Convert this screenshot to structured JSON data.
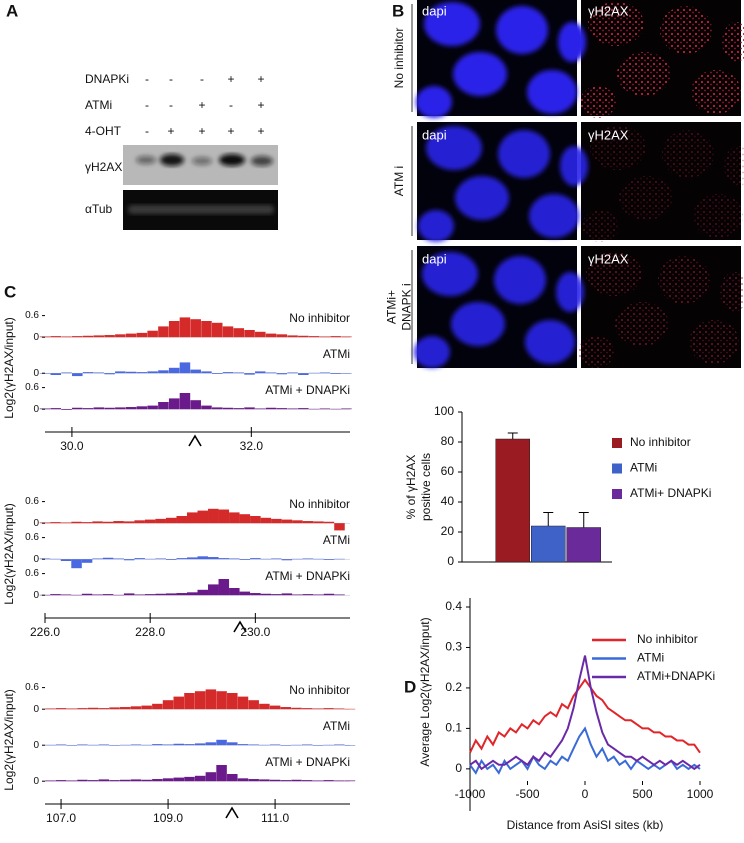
{
  "panel_labels": [
    "A",
    "B",
    "C",
    "D"
  ],
  "panel_a": {
    "rows": [
      {
        "label": "DNAPKi",
        "signs": [
          "-",
          "-",
          "-",
          "+",
          "+"
        ]
      },
      {
        "label": "ATMi",
        "signs": [
          "-",
          "-",
          "+",
          "-",
          "+"
        ]
      },
      {
        "label": "4-OHT",
        "signs": [
          "-",
          "+",
          "+",
          "+",
          "+"
        ]
      }
    ],
    "blots": [
      "γH2AX",
      "αTub"
    ]
  },
  "panel_b": {
    "stains": [
      "dapi",
      "γH2AX"
    ],
    "rows": [
      [
        "No inhibitor"
      ],
      [
        "ATM i"
      ],
      [
        "ATMi+",
        "DNAPK i"
      ]
    ]
  },
  "chart_data": [
    {
      "type": "bar",
      "ylabel": [
        "% of γH2AX",
        "positive cells"
      ],
      "categories": [
        "No inhibitor",
        "ATMi",
        "ATMi+ DNAPKi"
      ],
      "values": [
        82,
        24,
        23
      ],
      "errors": [
        4,
        9,
        10
      ],
      "colors": [
        "#9b1b22",
        "#3f62c8",
        "#6a2a9a"
      ],
      "ylim": [
        0,
        100
      ],
      "yticks": [
        0,
        20,
        40,
        60,
        80,
        100
      ]
    },
    {
      "type": "line",
      "ylabel": "Average Log2(γH2AX/input)",
      "xlabel": "Distance from AsiSI sites (kb)",
      "x": [
        -1000,
        -950,
        -900,
        -850,
        -800,
        -750,
        -700,
        -650,
        -600,
        -550,
        -500,
        -450,
        -400,
        -350,
        -300,
        -250,
        -200,
        -150,
        -100,
        -50,
        0,
        50,
        100,
        150,
        200,
        250,
        300,
        350,
        400,
        450,
        500,
        550,
        600,
        650,
        700,
        750,
        800,
        850,
        900,
        950,
        1000
      ],
      "series": [
        {
          "name": "No inhibitor",
          "color": "#e0262a",
          "values": [
            0.04,
            0.07,
            0.05,
            0.08,
            0.06,
            0.09,
            0.08,
            0.1,
            0.09,
            0.11,
            0.1,
            0.12,
            0.11,
            0.13,
            0.14,
            0.13,
            0.16,
            0.15,
            0.18,
            0.2,
            0.22,
            0.2,
            0.18,
            0.17,
            0.15,
            0.14,
            0.13,
            0.12,
            0.12,
            0.11,
            0.1,
            0.1,
            0.09,
            0.09,
            0.08,
            0.08,
            0.07,
            0.07,
            0.06,
            0.06,
            0.04
          ]
        },
        {
          "name": "ATMi",
          "color": "#3a6ad8",
          "values": [
            0.01,
            -0.01,
            0.02,
            0,
            0.01,
            -0.01,
            0.02,
            0,
            0.01,
            0.02,
            0,
            0.03,
            0.01,
            0,
            0.02,
            0.01,
            0.03,
            0.02,
            0.05,
            0.08,
            0.1,
            0.06,
            0.03,
            0.05,
            0.02,
            0.03,
            0.01,
            0.02,
            0,
            0.02,
            0.01,
            0,
            0.01,
            0,
            0.01,
            0.02,
            0,
            0.01,
            0,
            0.01,
            0
          ]
        },
        {
          "name": "ATMi+DNAPKi",
          "color": "#6a2aa8",
          "values": [
            0.01,
            0.02,
            0,
            0.01,
            0.02,
            0.01,
            0.01,
            0.02,
            0.03,
            0.02,
            0.01,
            0.03,
            0.02,
            0.04,
            0.03,
            0.05,
            0.07,
            0.1,
            0.15,
            0.22,
            0.28,
            0.2,
            0.14,
            0.09,
            0.06,
            0.05,
            0.04,
            0.03,
            0.03,
            0.02,
            0.03,
            0.02,
            0.01,
            0.02,
            0.01,
            0.02,
            0.01,
            0.02,
            0.01,
            0,
            0.01
          ]
        }
      ],
      "xlim": [
        -1000,
        1000
      ],
      "xticks": [
        -1000,
        -500,
        0,
        500,
        1000
      ],
      "ylim": [
        -0.03,
        0.4
      ],
      "yticks": [
        0,
        0.1,
        0.2,
        0.3,
        0.4
      ]
    },
    {
      "type": "area",
      "ylabel": "Log2(γH2AX/input)",
      "x": [
        29.7,
        29.82,
        29.94,
        30.06,
        30.18,
        30.3,
        30.42,
        30.54,
        30.66,
        30.78,
        30.9,
        31.02,
        31.14,
        31.26,
        31.38,
        31.5,
        31.62,
        31.74,
        31.86,
        31.98,
        32.1,
        32.22,
        32.34,
        32.46,
        32.58,
        32.7,
        32.82,
        32.94,
        33.06
      ],
      "series": [
        {
          "name": "No inhibitor",
          "color": "#d42a2a",
          "yticks": [
            0,
            0.6
          ],
          "values": [
            0.02,
            0.03,
            0.02,
            0.03,
            0.04,
            0.05,
            0.06,
            0.08,
            0.1,
            0.12,
            0.18,
            0.3,
            0.45,
            0.55,
            0.5,
            0.45,
            0.4,
            0.3,
            0.25,
            0.2,
            0.15,
            0.1,
            0.08,
            0.05,
            0.04,
            0.03,
            0.02,
            0.03,
            0.02
          ]
        },
        {
          "name": "ATMi",
          "color": "#4a68e0",
          "yticks": [
            0
          ],
          "values": [
            0,
            -0.05,
            0.02,
            -0.08,
            0.03,
            0.02,
            -0.03,
            0.05,
            0.04,
            0.03,
            0.05,
            0.08,
            0.15,
            0.3,
            0.1,
            0.05,
            -0.02,
            0.03,
            0.02,
            -0.04,
            0.05,
            0.02,
            -0.03,
            0.02,
            -0.05,
            0.01,
            0.02,
            -0.02,
            0
          ]
        },
        {
          "name": "ATMi + DNAPKi",
          "color": "#6a1a8a",
          "yticks": [
            0,
            0.6
          ],
          "values": [
            0.02,
            0.03,
            -0.02,
            0.04,
            0.03,
            0.05,
            0.04,
            0.05,
            0.06,
            0.08,
            0.1,
            0.2,
            0.3,
            0.45,
            0.25,
            0.1,
            0.05,
            0.04,
            0.03,
            0.05,
            0.02,
            0.04,
            0.03,
            0.02,
            0.03,
            0.01,
            0.02,
            0.01,
            0.02
          ]
        }
      ],
      "xlim": [
        29.7,
        33.1
      ],
      "xticks": [
        {
          "value": 30,
          "label": "30.0"
        },
        {
          "value": 32,
          "label": "32.0"
        }
      ],
      "ylim": [
        -0.3,
        0.7
      ]
    },
    {
      "type": "area",
      "ylabel": "Log2(γH2AX/input)",
      "x": [
        226.0,
        226.2,
        226.4,
        226.6,
        226.8,
        227.0,
        227.2,
        227.4,
        227.6,
        227.8,
        228.0,
        228.2,
        228.4,
        228.6,
        228.8,
        229.0,
        229.2,
        229.4,
        229.6,
        229.8,
        230.0,
        230.2,
        230.4,
        230.6,
        230.8,
        231.0,
        231.2,
        231.4,
        231.6
      ],
      "series": [
        {
          "name": "No inhibitor",
          "color": "#d42a2a",
          "yticks": [
            0,
            0.6
          ],
          "values": [
            0.02,
            0.03,
            0.02,
            0.04,
            0.03,
            0.05,
            0.04,
            0.06,
            0.05,
            0.08,
            0.1,
            0.12,
            0.15,
            0.2,
            0.3,
            0.35,
            0.4,
            0.38,
            0.3,
            0.25,
            0.2,
            0.15,
            0.12,
            0.1,
            0.08,
            0.06,
            0.05,
            0.04,
            -0.2
          ]
        },
        {
          "name": "ATMi",
          "color": "#4a68e0",
          "yticks": [
            0,
            0.6
          ],
          "values": [
            0.02,
            0.01,
            -0.05,
            -0.25,
            -0.1,
            0.02,
            0.04,
            0.02,
            -0.03,
            0.03,
            0.01,
            0.02,
            -0.02,
            0.03,
            0.05,
            0.08,
            0.06,
            0.03,
            0.02,
            -0.02,
            0.03,
            0.01,
            0.02,
            -0.03,
            0.01,
            0.02,
            0.01,
            -0.02,
            0.01
          ]
        },
        {
          "name": "ATMi + DNAPKi",
          "color": "#6a1a8a",
          "yticks": [
            0,
            0.6
          ],
          "values": [
            0.01,
            0.03,
            0.02,
            0.01,
            0.04,
            0.02,
            0.03,
            0.01,
            0.05,
            0.02,
            0.03,
            0.04,
            0.05,
            0.06,
            0.08,
            0.15,
            0.3,
            0.45,
            0.2,
            0.1,
            0.06,
            0.04,
            0.03,
            0.05,
            0.02,
            0.03,
            0.02,
            0.04,
            0.02
          ]
        }
      ],
      "xlim": [
        226,
        231.8
      ],
      "xticks": [
        {
          "value": 226,
          "label": "226.0"
        },
        {
          "value": 228,
          "label": "228.0"
        },
        {
          "value": 230,
          "label": "230.0"
        }
      ],
      "ylim": [
        -0.3,
        0.7
      ]
    },
    {
      "type": "area",
      "ylabel": "Log2(γH2AX/input)",
      "x": [
        106.8,
        107.0,
        107.2,
        107.4,
        107.6,
        107.8,
        108.0,
        108.2,
        108.4,
        108.6,
        108.8,
        109.0,
        109.2,
        109.4,
        109.6,
        109.8,
        110.0,
        110.2,
        110.4,
        110.6,
        110.8,
        111.0,
        111.2,
        111.4,
        111.6,
        111.8,
        112.0,
        112.2,
        112.4
      ],
      "series": [
        {
          "name": "No inhibitor",
          "color": "#d42a2a",
          "yticks": [
            0,
            0.6
          ],
          "values": [
            0.02,
            0.03,
            0.02,
            0.03,
            0.04,
            0.03,
            0.05,
            0.06,
            0.08,
            0.1,
            0.15,
            0.25,
            0.35,
            0.45,
            0.5,
            0.55,
            0.5,
            0.45,
            0.35,
            0.25,
            0.15,
            0.1,
            0.06,
            0.04,
            0.03,
            0.02,
            0.03,
            0.02,
            0.01
          ]
        },
        {
          "name": "ATMi",
          "color": "#4a68e0",
          "yticks": [
            0
          ],
          "values": [
            0.01,
            0.02,
            0,
            0.02,
            0.01,
            0.02,
            0,
            0.01,
            0.02,
            0.01,
            0.03,
            0.02,
            0.04,
            0.03,
            0.05,
            0.08,
            0.15,
            0.08,
            0.03,
            0.02,
            0.01,
            0.02,
            0,
            0.01,
            0.02,
            0,
            0.01,
            0.02,
            0
          ]
        },
        {
          "name": "ATMi + DNAPKi",
          "color": "#6a1a8a",
          "yticks": [
            0
          ],
          "values": [
            0.02,
            0.03,
            0.02,
            0.04,
            0.03,
            0.05,
            0.03,
            0.04,
            0.05,
            0.04,
            0.06,
            0.08,
            0.1,
            0.12,
            0.15,
            0.25,
            0.45,
            0.2,
            0.08,
            0.06,
            0.05,
            0.04,
            0.03,
            0.04,
            0.03,
            0.02,
            0.03,
            0.02,
            0.02
          ]
        }
      ],
      "xlim": [
        106.7,
        112.4
      ],
      "xticks": [
        {
          "value": 107,
          "label": "107.0"
        },
        {
          "value": 109,
          "label": "109.0"
        },
        {
          "value": 111,
          "label": "111.0"
        }
      ],
      "ylim": [
        -0.3,
        0.7
      ]
    }
  ]
}
